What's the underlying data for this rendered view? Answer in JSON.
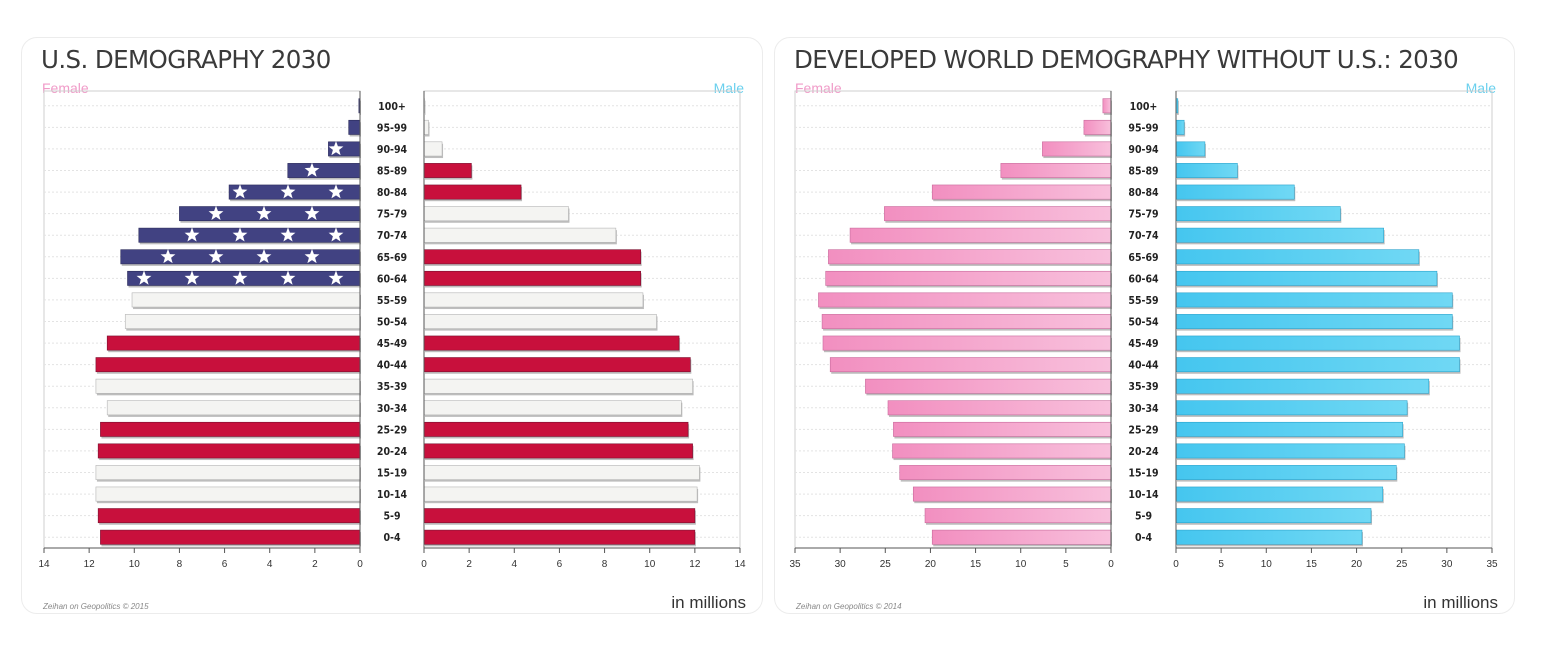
{
  "chart_data": [
    {
      "type": "bar",
      "title": "U.S. DEMOGRAPHY 2030",
      "left_label": "Female",
      "right_label": "Male",
      "units": "in millions",
      "credit": "Zeihan on Geopolitics © 2015",
      "xlim": [
        0,
        14
      ],
      "x_ticks": [
        0,
        2,
        4,
        6,
        8,
        10,
        12,
        14
      ],
      "categories": [
        "100+",
        "95-99",
        "90-94",
        "85-89",
        "80-84",
        "75-79",
        "70-74",
        "65-69",
        "60-64",
        "55-59",
        "50-54",
        "45-49",
        "40-44",
        "35-39",
        "30-34",
        "25-29",
        "20-24",
        "15-19",
        "10-14",
        "5-9",
        "0-4"
      ],
      "series": [
        {
          "name": "Female",
          "values": [
            0.05,
            0.5,
            1.4,
            3.2,
            5.8,
            8.0,
            9.8,
            10.6,
            10.3,
            10.1,
            10.4,
            11.2,
            11.7,
            11.7,
            11.2,
            11.5,
            11.6,
            11.7,
            11.7,
            11.6,
            11.5
          ]
        },
        {
          "name": "Male",
          "values": [
            0.02,
            0.2,
            0.8,
            2.1,
            4.3,
            6.4,
            8.5,
            9.6,
            9.6,
            9.7,
            10.3,
            11.3,
            11.8,
            11.9,
            11.4,
            11.7,
            11.9,
            12.2,
            12.1,
            12.0,
            12.0
          ]
        }
      ]
    },
    {
      "type": "bar",
      "title": "DEVELOPED WORLD DEMOGRAPHY WITHOUT U.S.: 2030",
      "left_label": "Female",
      "right_label": "Male",
      "units": "in millions",
      "credit": "Zeihan on Geopolitics © 2014",
      "xlim": [
        0,
        35
      ],
      "x_ticks": [
        0,
        5,
        10,
        15,
        20,
        25,
        30,
        35
      ],
      "categories": [
        "100+",
        "95-99",
        "90-94",
        "85-89",
        "80-84",
        "75-79",
        "70-74",
        "65-69",
        "60-64",
        "55-59",
        "50-54",
        "45-49",
        "40-44",
        "35-39",
        "30-34",
        "25-29",
        "20-24",
        "15-19",
        "10-14",
        "5-9",
        "0-4"
      ],
      "series": [
        {
          "name": "Female",
          "values": [
            0.9,
            3.0,
            7.6,
            12.2,
            19.8,
            25.1,
            28.9,
            31.3,
            31.6,
            32.4,
            32.0,
            31.9,
            31.1,
            27.2,
            24.7,
            24.1,
            24.2,
            23.4,
            21.9,
            20.6,
            19.8
          ]
        },
        {
          "name": "Male",
          "values": [
            0.2,
            0.9,
            3.2,
            6.8,
            13.1,
            18.2,
            23.0,
            26.9,
            28.9,
            30.6,
            30.6,
            31.4,
            31.4,
            28.0,
            25.6,
            25.1,
            25.3,
            24.4,
            22.9,
            21.6,
            20.6
          ]
        }
      ]
    }
  ],
  "colors": {
    "us_red": "#c8103c",
    "us_white": "#f4f4f2",
    "us_blue": "#414282",
    "pink": "#f5a3cb",
    "cyan": "#59cdf1"
  },
  "us_stripe_pattern": [
    "blue",
    "blue",
    "blue",
    "blue",
    "blue",
    "blue",
    "blue",
    "blue",
    "blue",
    "white",
    "white",
    "red",
    "red",
    "white",
    "white",
    "red",
    "red",
    "white",
    "white",
    "red",
    "red"
  ],
  "us_male_pattern": [
    "white",
    "white",
    "white",
    "red",
    "red",
    "white",
    "white",
    "red",
    "red",
    "white",
    "white",
    "red",
    "red",
    "white",
    "white",
    "red",
    "red",
    "white",
    "white",
    "red",
    "red"
  ]
}
